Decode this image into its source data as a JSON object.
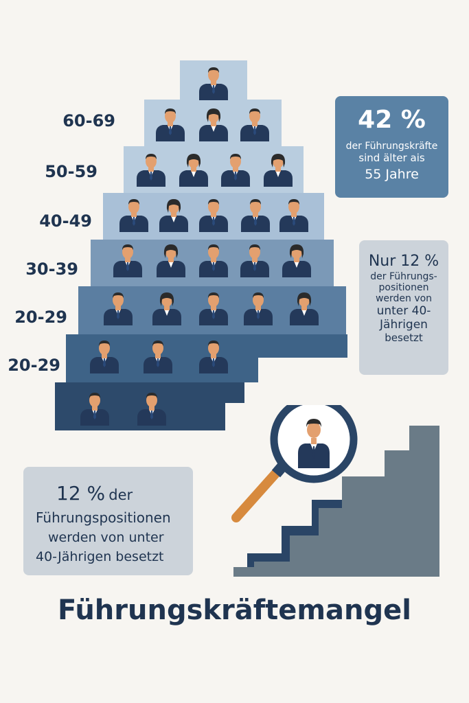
{
  "pyramid": {
    "age_labels": [
      "60-69",
      "50-59",
      "40-49",
      "30-39",
      "20-29",
      "20-29"
    ],
    "tiers": [
      {
        "people": 1,
        "color": "#b9cddf"
      },
      {
        "people": 3,
        "color": "#b9cddf"
      },
      {
        "people": 4,
        "color": "#b9cddf"
      },
      {
        "people": 5,
        "color": "#a7bfd6"
      },
      {
        "people": 5,
        "color": "#7a98b7"
      },
      {
        "people": 5,
        "color": "#5b7ea1"
      },
      {
        "people": 3,
        "color": "#3e6387"
      },
      {
        "people": 2,
        "color": "#2d4a6b"
      }
    ]
  },
  "stat_top": {
    "value": "42 %",
    "line1": "der Führungskräfte",
    "line2": "sind älter ais",
    "line3": "55 Jahre",
    "color": "#5a82a5"
  },
  "stat_mid": {
    "line1": "Nur 12 %",
    "line2": "der Führungs-",
    "line3": "positionen",
    "line4": "werden von",
    "line5": "unter 40-",
    "line6": "Jährigen",
    "line7": "besetzt"
  },
  "stat_bottom": {
    "line1_value": "12 %",
    "line1_rest": "der",
    "line2": "Führungspositionen",
    "line3": "werden von unter",
    "line4": "40-Jährigen besetzt"
  },
  "illustration": {
    "icons": [
      "magnifier-icon",
      "person-icon",
      "stairs-icon"
    ]
  },
  "title": "Führungskräftemangel",
  "colors": {
    "background": "#f7f5f1",
    "navy": "#1f3450",
    "suit": "#24395a",
    "skin": "#e3a06f",
    "handle": "#d78a3e",
    "grey_box": "#ccd3da",
    "stairs": "#6a7b87"
  }
}
